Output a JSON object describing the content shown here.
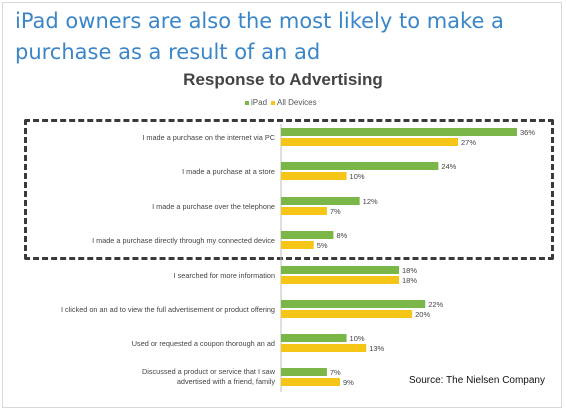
{
  "headline": "iPad owners are also the most likely to make a purchase as a result of an ad",
  "source": "Source: The Nielsen Company",
  "chart_data": {
    "type": "bar",
    "orientation": "horizontal",
    "title": "Response to Advertising",
    "legend_position": "top-center",
    "categories": [
      "I made a purchase on the internet via PC",
      "I made a purchase at a store",
      "I made a purchase over the telephone",
      "I made a purchase directly through my connected device",
      "I searched for more information",
      "I clicked on an ad to view the full advertisement or product offering",
      "Used or requested a coupon thorough an ad",
      "Discussed a product or service that I saw advertised with a friend, family"
    ],
    "series": [
      {
        "name": "iPad",
        "color": "#7ab648",
        "values": [
          36,
          24,
          12,
          8,
          18,
          22,
          10,
          7
        ]
      },
      {
        "name": "All Devices",
        "color": "#f5c518",
        "values": [
          27,
          10,
          7,
          5,
          18,
          20,
          13,
          9
        ]
      }
    ],
    "value_suffix": "%",
    "xlim": [
      0,
      36
    ],
    "grid": false,
    "highlight_group": [
      0,
      1,
      2,
      3
    ]
  }
}
